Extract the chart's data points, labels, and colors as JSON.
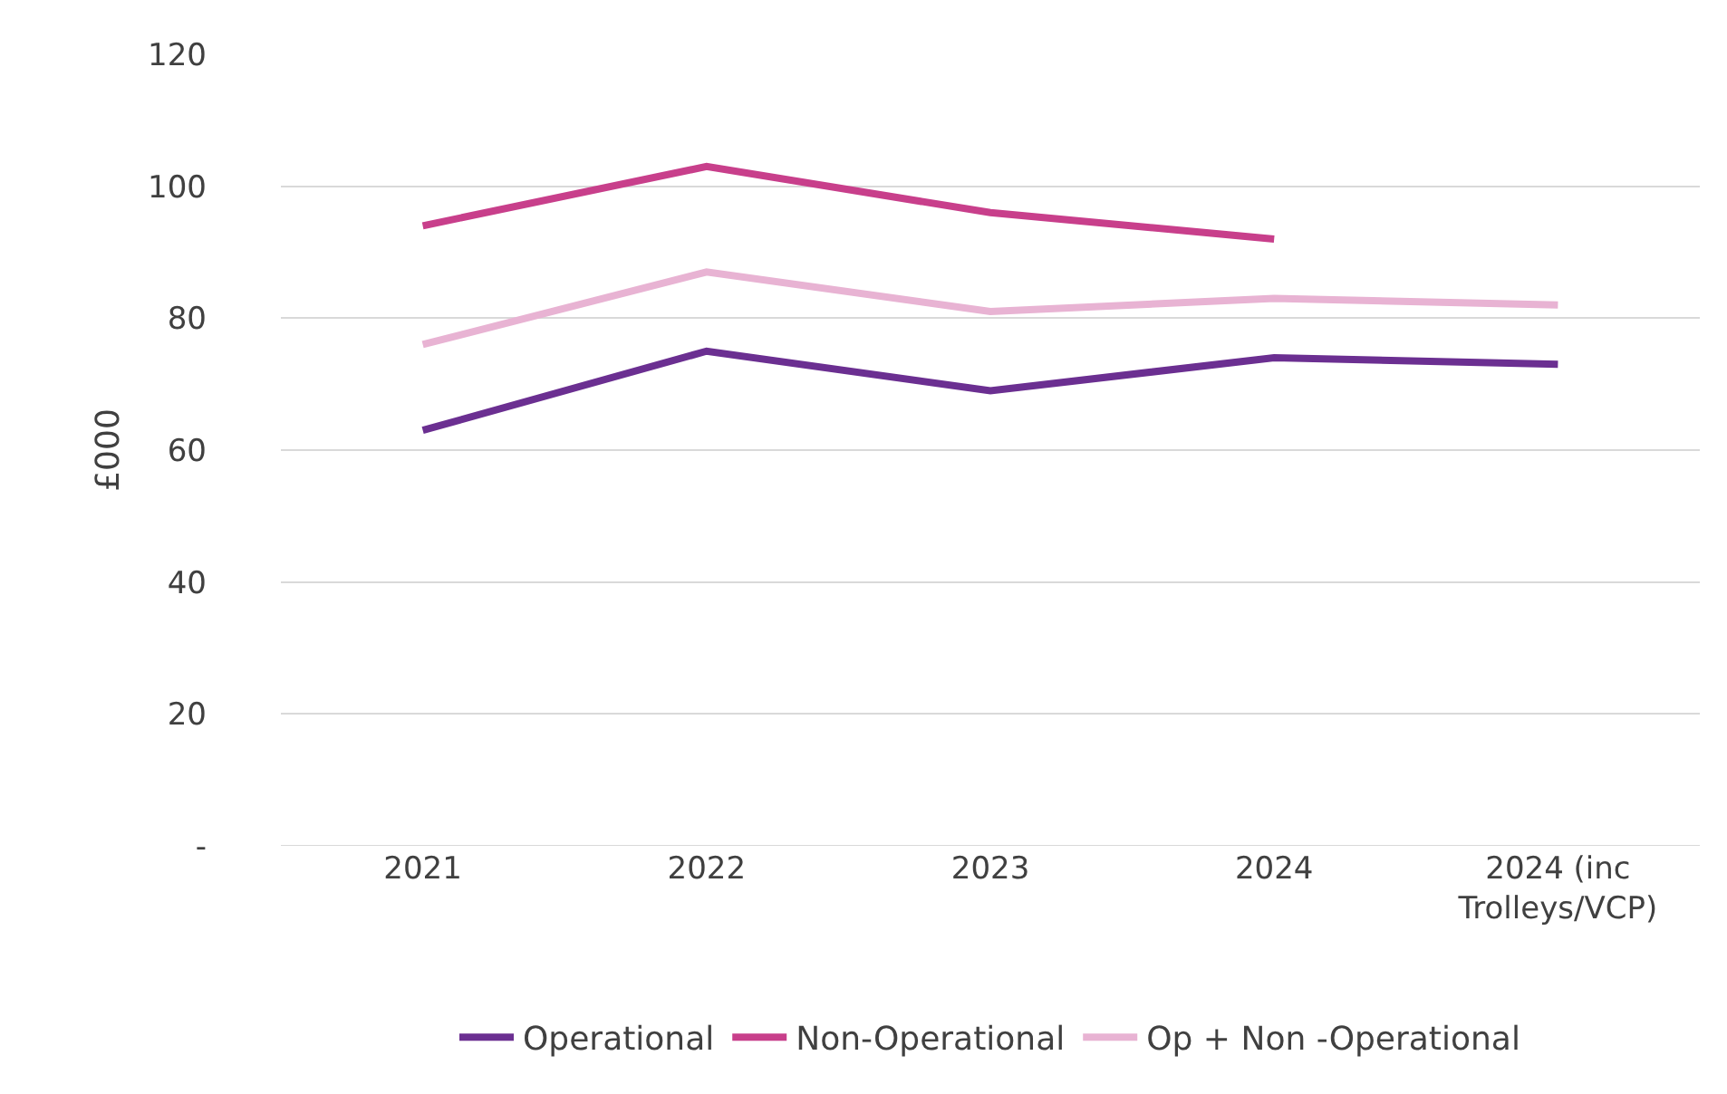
{
  "chart_data": {
    "type": "line",
    "ylabel": "£000",
    "categories": [
      "2021",
      "2022",
      "2023",
      "2024",
      "2024 (inc Trolleys/VCP)"
    ],
    "series": [
      {
        "name": "Operational",
        "color": "#6b2f91",
        "values": [
          63,
          75,
          69,
          74,
          73
        ]
      },
      {
        "name": "Non-Operational",
        "color": "#c83f8b",
        "values": [
          94,
          103,
          96,
          92,
          null
        ]
      },
      {
        "name": "Op + Non -Operational",
        "color": "#e8b3d3",
        "values": [
          76,
          87,
          81,
          83,
          82
        ]
      }
    ],
    "ylim": [
      0,
      120
    ],
    "yticks": [
      {
        "value": 0,
        "label": "-"
      },
      20,
      40,
      60,
      80,
      100,
      120
    ],
    "grid": "y",
    "legend": "bottom",
    "marker": "none",
    "line_style": "solid"
  }
}
